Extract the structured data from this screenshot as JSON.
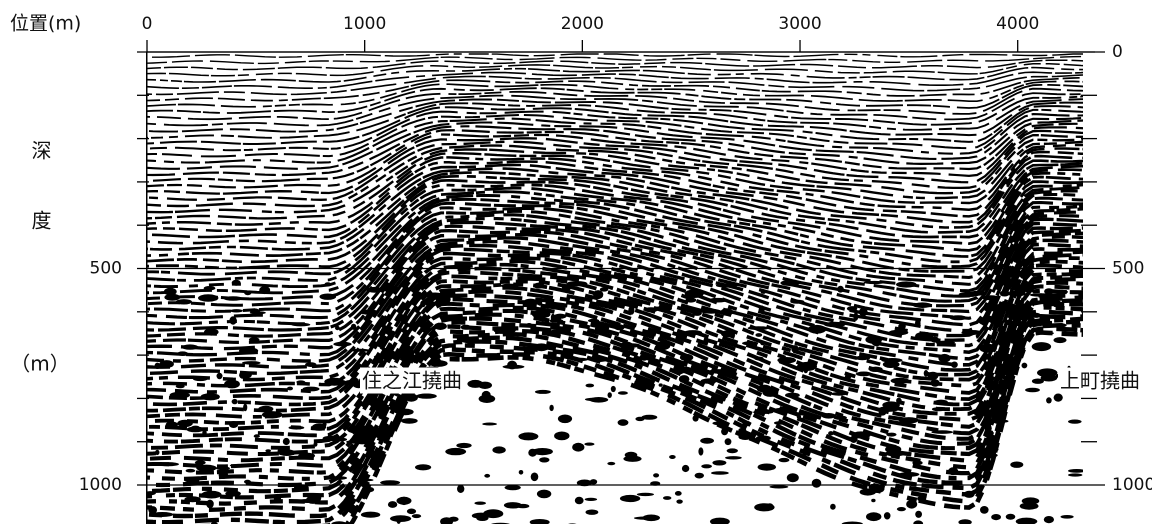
{
  "chart_data": {
    "type": "seismic-section",
    "xlabel": "位置(m)",
    "ylabel": "深度",
    "ylabel_unit": "（m）",
    "xlim": [
      0,
      4300
    ],
    "xticks": [
      0,
      1000,
      2000,
      3000,
      4000
    ],
    "ylim": [
      0,
      1090
    ],
    "yticks": [
      0,
      500,
      1000
    ],
    "minor_yticks": [
      100,
      200,
      300,
      400,
      600,
      700,
      800,
      900
    ],
    "annotations": [
      "住之江撓曲",
      "上町撓曲"
    ]
  }
}
